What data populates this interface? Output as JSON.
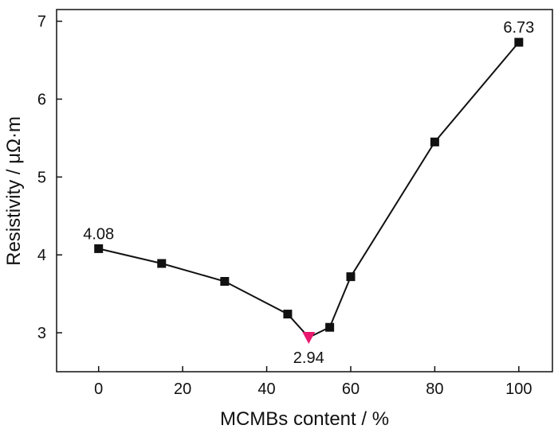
{
  "chart_data": {
    "type": "line",
    "xlabel": "MCMBs content / %",
    "ylabel": "Resistivity / μΩ·m",
    "xlim": [
      -10,
      108
    ],
    "ylim": [
      2.5,
      7.15
    ],
    "x_ticks": [
      0,
      20,
      40,
      60,
      80,
      100
    ],
    "y_ticks": [
      3,
      4,
      5,
      6,
      7
    ],
    "grid": false,
    "series": [
      {
        "x": [
          0,
          15,
          30,
          45,
          50,
          55,
          60,
          80,
          100
        ],
        "y": [
          4.08,
          3.89,
          3.66,
          3.24,
          2.94,
          3.07,
          3.72,
          5.45,
          6.73
        ],
        "marker": "square",
        "color": "#111111"
      }
    ],
    "highlight": {
      "x": 50,
      "y": 2.94,
      "marker": "triangle-down",
      "color": "#e8196e"
    },
    "annotations": [
      {
        "text": "4.08",
        "x": 0,
        "y": 4.08,
        "position": "above"
      },
      {
        "text": "2.94",
        "x": 50,
        "y": 2.94,
        "position": "below"
      },
      {
        "text": "6.73",
        "x": 100,
        "y": 6.73,
        "position": "above"
      }
    ]
  }
}
